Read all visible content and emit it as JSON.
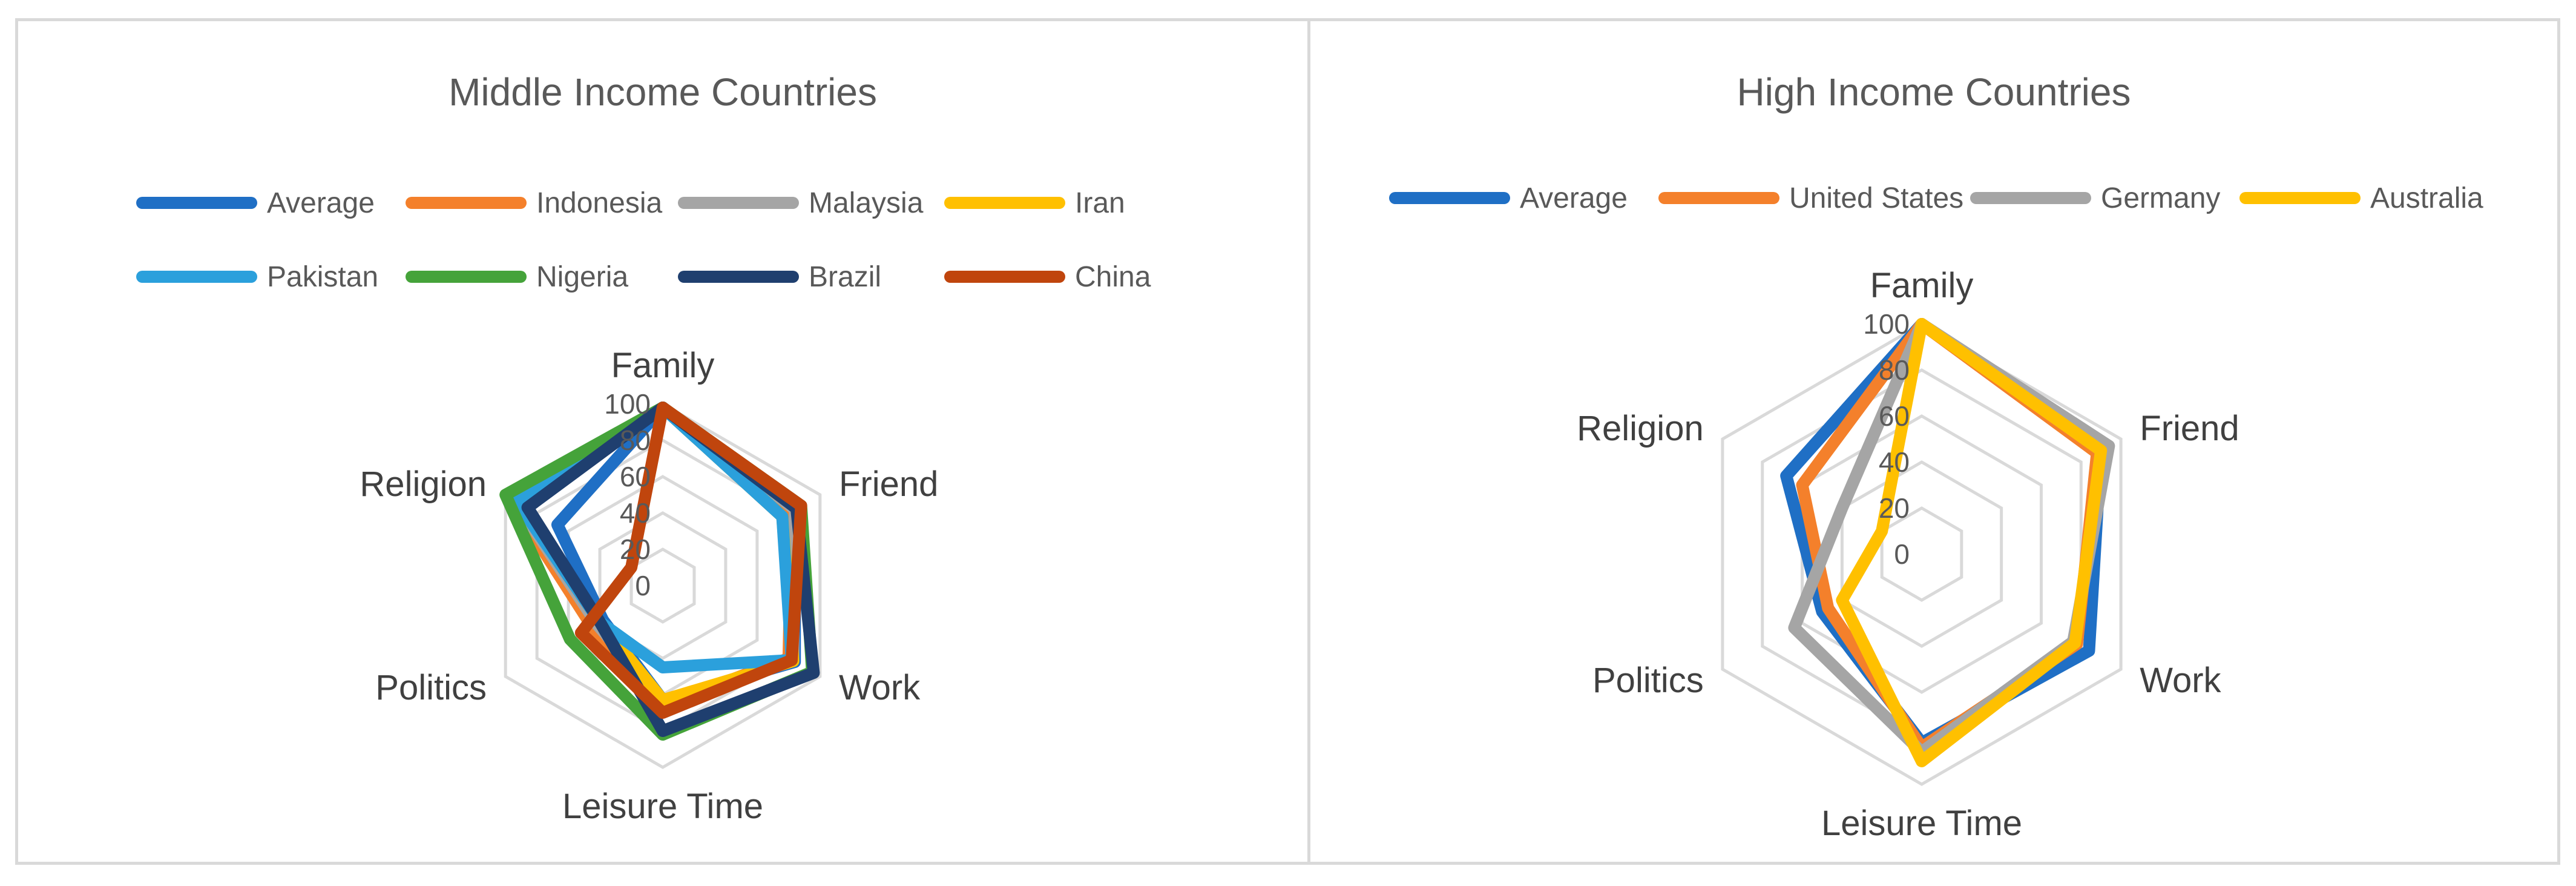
{
  "chart_data": [
    {
      "type": "radar",
      "title": "Middle Income Countries",
      "axes": [
        "Family",
        "Friend",
        "Work",
        "Leisure Time",
        "Politics",
        "Religion"
      ],
      "rlim": [
        0,
        100
      ],
      "ticks": [
        "0",
        "20",
        "40",
        "60",
        "80",
        "100"
      ],
      "grid": true,
      "legend_position": "top",
      "series": [
        {
          "name": "Average",
          "color": "#1f6fc5",
          "values": [
            98,
            84,
            84,
            63,
            38,
            67
          ]
        },
        {
          "name": "Indonesia",
          "color": "#f4802b",
          "values": [
            98,
            82,
            80,
            66,
            45,
            98
          ]
        },
        {
          "name": "Malaysia",
          "color": "#a5a5a5",
          "values": [
            98,
            84,
            83,
            64,
            42,
            94
          ]
        },
        {
          "name": "Iran",
          "color": "#ffc000",
          "values": [
            98,
            76,
            83,
            63,
            40,
            90
          ]
        },
        {
          "name": "Pakistan",
          "color": "#2ba0dc",
          "values": [
            98,
            76,
            82,
            45,
            40,
            93
          ]
        },
        {
          "name": "Nigeria",
          "color": "#45a33a",
          "values": [
            98,
            88,
            95,
            82,
            59,
            100
          ]
        },
        {
          "name": "Brazil",
          "color": "#1f3f6f",
          "values": [
            98,
            85,
            96,
            80,
            40,
            86
          ]
        },
        {
          "name": "China",
          "color": "#c0450d",
          "values": [
            98,
            88,
            82,
            70,
            52,
            20
          ]
        }
      ]
    },
    {
      "type": "radar",
      "title": "High Income Countries",
      "axes": [
        "Family",
        "Friend",
        "Work",
        "Leisure Time",
        "Politics",
        "Religion"
      ],
      "rlim": [
        0,
        100
      ],
      "ticks": [
        "0",
        "20",
        "40",
        "60",
        "80",
        "100"
      ],
      "grid": true,
      "legend_position": "top",
      "series": [
        {
          "name": "Average",
          "color": "#1f6fc5",
          "values": [
            100,
            90,
            84,
            82,
            50,
            68
          ]
        },
        {
          "name": "United States",
          "color": "#f4802b",
          "values": [
            100,
            88,
            78,
            84,
            47,
            60
          ]
        },
        {
          "name": "Germany",
          "color": "#a5a5a5",
          "values": [
            100,
            94,
            76,
            86,
            64,
            40
          ]
        },
        {
          "name": "Australia",
          "color": "#ffc000",
          "values": [
            100,
            90,
            77,
            90,
            40,
            20
          ]
        }
      ]
    }
  ]
}
